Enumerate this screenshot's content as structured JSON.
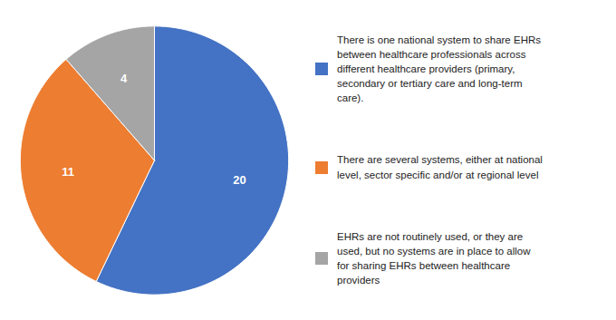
{
  "chart_data": {
    "type": "pie",
    "categories": [
      "There is one national system to share EHRs\nbetween healthcare professionals across\ndifferent healthcare providers (primary,\nsecondary or tertiary care and long-term\ncare).",
      "There are several systems, either at national\nlevel, sector specific and/or at regional level",
      "EHRs are not routinely used, or they are\nused, but no systems are in place to allow\nfor sharing EHRs between healthcare\nproviders"
    ],
    "values": [
      20,
      11,
      4
    ],
    "colors": [
      "#4472C4",
      "#ED7D31",
      "#A5A5A5"
    ],
    "data_labels": true,
    "legend": "right"
  }
}
